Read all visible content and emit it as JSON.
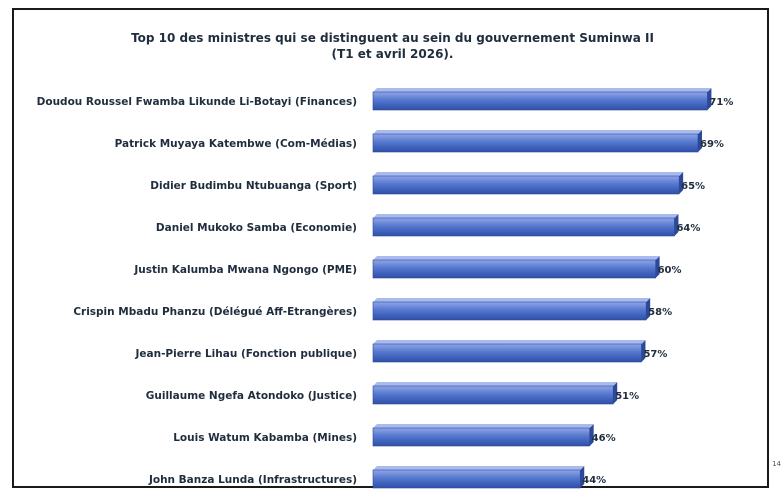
{
  "chart_data": {
    "type": "bar",
    "orientation": "horizontal",
    "title": "Top 10 des ministres qui se distinguent au sein du gouvernement Suminwa II",
    "subtitle": "(T1 et avril 2026).",
    "categories": [
      "Doudou Roussel Fwamba Likunde Li-Botayi (Finances)",
      "Patrick Muyaya Katembwe (Com-Médias)",
      "Didier Budimbu Ntubuanga (Sport)",
      "Daniel Mukoko Samba (Economie)",
      "Justin Kalumba Mwana Ngongo (PME)",
      "Crispin Mbadu Phanzu (Délégué Aff-Etrangères)",
      "Jean-Pierre Lihau (Fonction publique)",
      "Guillaume Ngefa Atondoko (Justice)",
      "Louis Watum Kabamba (Mines)",
      "John Banza Lunda (Infrastructures)"
    ],
    "values": [
      71,
      69,
      65,
      64,
      60,
      58,
      57,
      51,
      46,
      44
    ],
    "value_labels": [
      "71%",
      "69%",
      "65%",
      "64%",
      "60%",
      "58%",
      "57%",
      "51%",
      "46%",
      "44%"
    ],
    "xlim": [
      0,
      75
    ],
    "grid": false,
    "legend": "none",
    "bar_color": "#4a6fc7"
  },
  "page_number": "14"
}
